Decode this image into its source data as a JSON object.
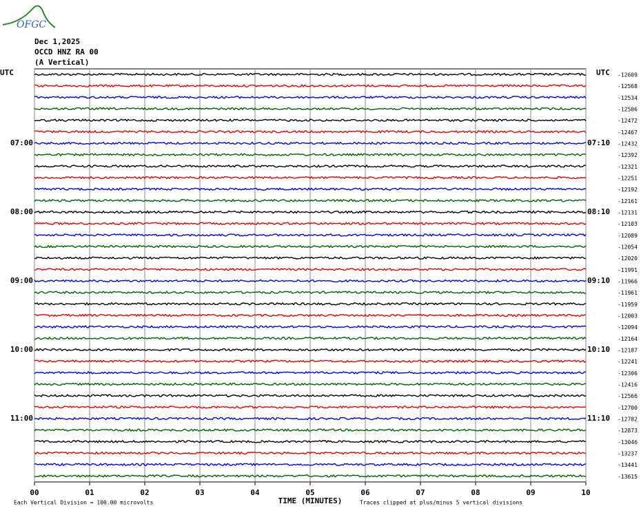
{
  "logo": "OFGC",
  "chart_data": {
    "type": "helicorder",
    "header": [
      "Dec 1,2025",
      "OCCD HNZ RA 00",
      "(A Vertical)"
    ],
    "left_axis_label": "UTC",
    "right_axis_label": "UTC",
    "left_times": [
      "07:00",
      "08:00",
      "09:00",
      "10:00",
      "11:00"
    ],
    "right_times": [
      "07:10",
      "08:10",
      "09:10",
      "10:10",
      "11:10"
    ],
    "trace_offsets": [
      -12609,
      -12568,
      -12534,
      -12506,
      -12472,
      -12467,
      -12432,
      -12392,
      -12321,
      -12251,
      -12192,
      -12161,
      -12131,
      -12103,
      -12089,
      -12054,
      -12020,
      -11991,
      -11966,
      -11961,
      -11959,
      -12003,
      -12094,
      -12164,
      -12187,
      -12241,
      -12306,
      -12416,
      -12566,
      -12700,
      -12782,
      -12873,
      -13046,
      -13237,
      -13441,
      -13615
    ],
    "colors": [
      "#000000",
      "#e00000",
      "#0000e0",
      "#006000"
    ],
    "xlim": [
      0,
      10
    ],
    "xticks": [
      {
        "value": 0,
        "label": "00"
      },
      {
        "value": 1,
        "label": "01"
      },
      {
        "value": 2,
        "label": "02"
      },
      {
        "value": 3,
        "label": "03"
      },
      {
        "value": 4,
        "label": "04"
      },
      {
        "value": 5,
        "label": "05"
      },
      {
        "value": 6,
        "label": "06"
      },
      {
        "value": 7,
        "label": "07"
      },
      {
        "value": 8,
        "label": "08"
      },
      {
        "value": 9,
        "label": "09"
      },
      {
        "value": 10,
        "label": "10"
      }
    ],
    "xlabel": "TIME (MINUTES)",
    "footer_left": "Each Vertical Division =  100.00 microvolts",
    "footer_right": "Traces clipped at plus/minus 5 vertical divisions",
    "grid": true
  }
}
